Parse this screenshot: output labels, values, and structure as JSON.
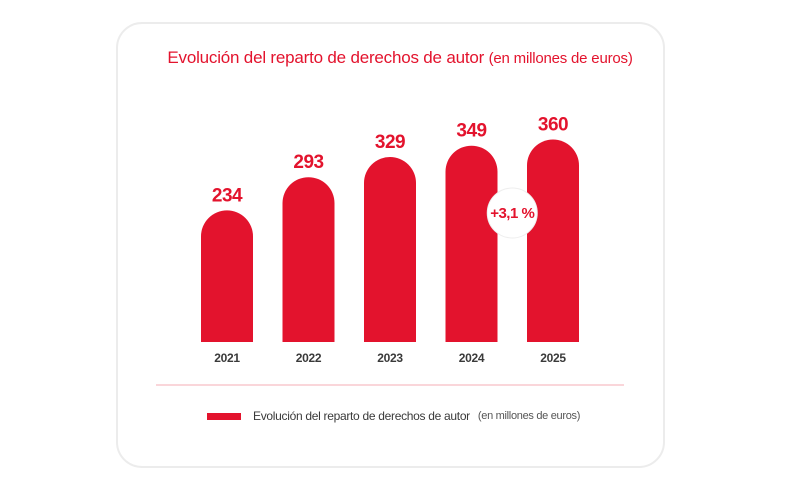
{
  "title": "Evolución del reparto de derechos de autor",
  "title_unit": "(en millones de euros)",
  "colors": {
    "accent": "#e3132d",
    "text": "#3a3a3a",
    "card_border": "#ececec"
  },
  "chart_data": {
    "type": "bar",
    "title": "Evolución del reparto de derechos de autor (en millones de euros)",
    "categories": [
      "2021",
      "2022",
      "2023",
      "2024",
      "2025"
    ],
    "values": [
      234,
      293,
      329,
      349,
      360
    ],
    "series": [
      {
        "name": "Evolución del reparto de derechos de autor",
        "values": [
          234,
          293,
          329,
          349,
          360
        ]
      }
    ],
    "annotation": "+3,1 %",
    "xlabel": "",
    "ylabel": "",
    "grid": false,
    "legend_position": "bottom"
  },
  "legend": {
    "label": "Evolución del reparto de derechos de autor",
    "unit": "(en millones de euros)"
  }
}
